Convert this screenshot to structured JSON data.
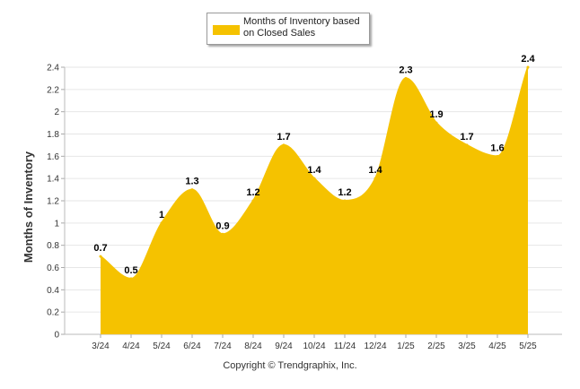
{
  "chart_data": {
    "type": "area",
    "categories": [
      "3/24",
      "4/24",
      "5/24",
      "6/24",
      "7/24",
      "8/24",
      "9/24",
      "10/24",
      "11/24",
      "12/24",
      "1/25",
      "2/25",
      "3/25",
      "4/25",
      "5/25"
    ],
    "series": [
      {
        "name": "Months of Inventory based on Closed Sales",
        "values": [
          0.7,
          0.5,
          1,
          1.3,
          0.9,
          1.2,
          1.7,
          1.4,
          1.2,
          1.4,
          2.3,
          1.9,
          1.7,
          1.6,
          2.4
        ],
        "data_labels": [
          "0.7",
          "0.5",
          "1",
          "1.3",
          "0.9",
          "1.2",
          "1.7",
          "1.4",
          "1.2",
          "1.4",
          "2.3",
          "1.9",
          "1.7",
          "1.6",
          "2.4"
        ]
      }
    ],
    "ylabel": "Months of Inventory",
    "ylim": [
      0,
      2.4
    ],
    "yticks": [
      "0",
      "0.2",
      "0.4",
      "0.6",
      "0.8",
      "1",
      "1.2",
      "1.4",
      "1.6",
      "1.8",
      "2",
      "2.2",
      "2.4"
    ],
    "grid": true,
    "legend_position": "top-center",
    "series_color": "#F5C200"
  },
  "legend": {
    "label": "Months of Inventory based on Closed Sales"
  },
  "footer": {
    "copyright": "Copyright © Trendgraphix, Inc."
  }
}
